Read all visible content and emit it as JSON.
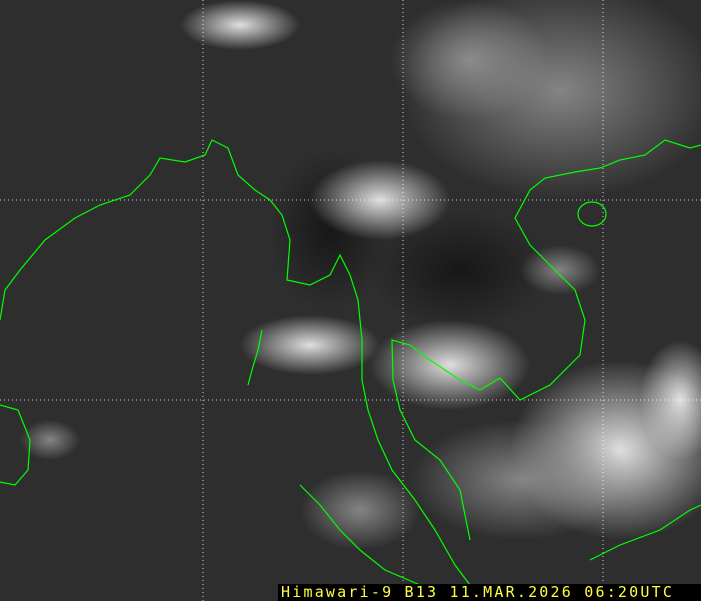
{
  "image": {
    "satellite": "Himawari-9",
    "band": "B13",
    "date": "11.MAR.2026",
    "time": "06:20UTC",
    "caption": "Himawari-9 B13 11.MAR.2026 06:20UTC"
  },
  "colors": {
    "coastline": "#00ff00",
    "grid": "#ffffff",
    "caption_text": "#ffff40",
    "caption_background": "#000000"
  }
}
